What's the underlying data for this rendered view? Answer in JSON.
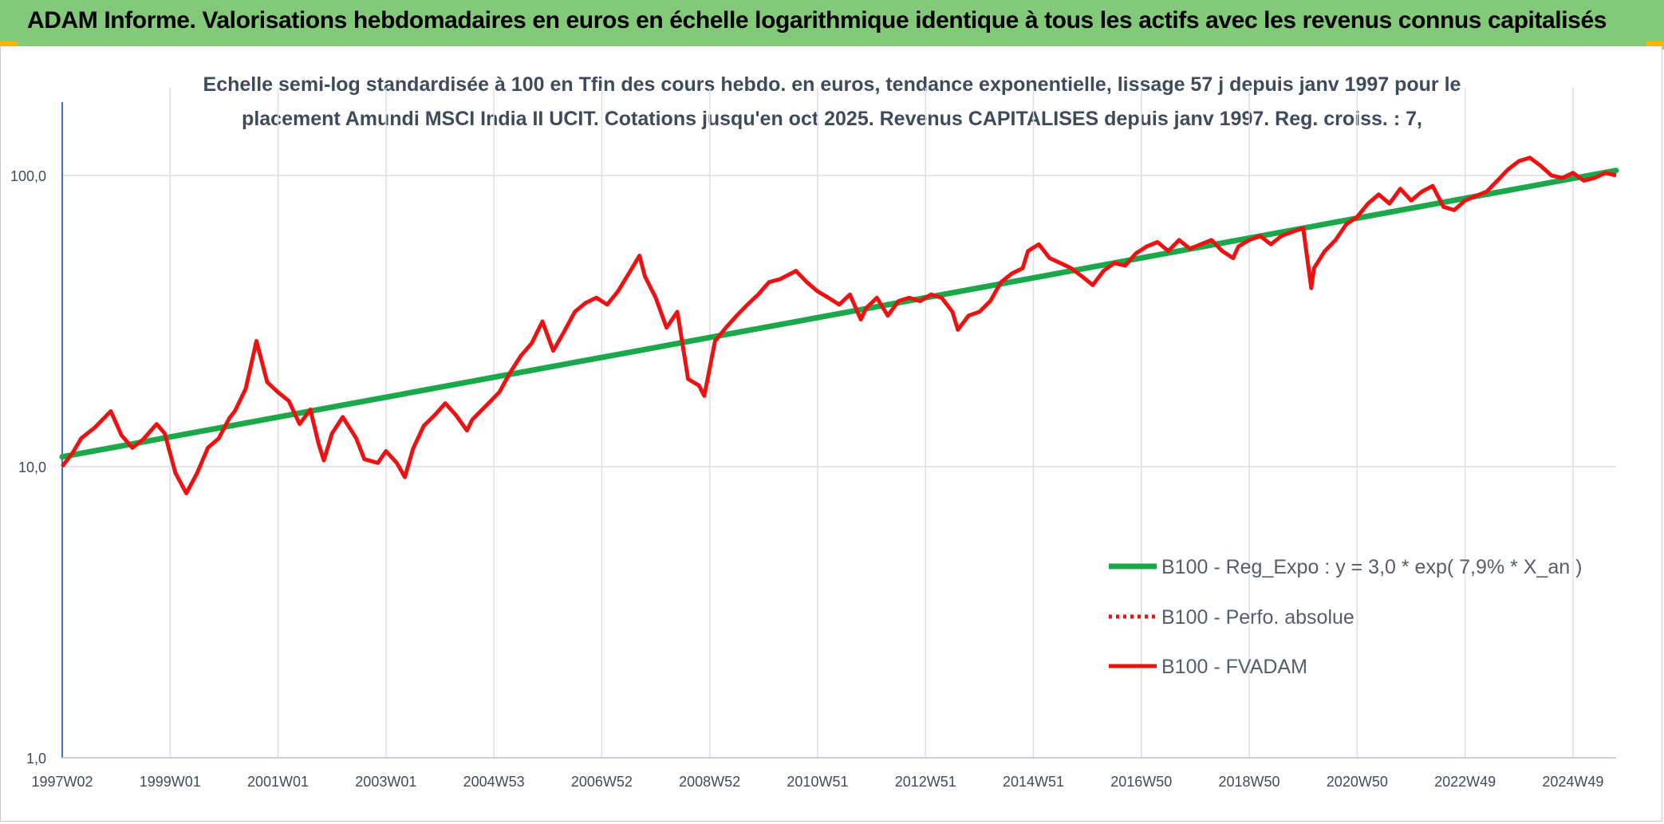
{
  "header": {
    "title": "ADAM Informe. Valorisations hebdomadaires en euros en échelle logarithmique identique à tous les actifs avec les revenus connus capitalisés"
  },
  "colors": {
    "header_bg": "#82c97a",
    "corner_accent": "#f5b700",
    "trend_line": "#1aa84b",
    "price_line": "#ee1111",
    "axis_line": "#4472c4",
    "gridline": "#dcdfe4",
    "text": "#3f4b5b"
  },
  "chart_data": {
    "type": "line",
    "title_lines": [
      "Echelle semi-log standardisée à 100 en Tfin des cours hebdo. en euros, tendance exponentielle, lissage 57 j depuis janv 1997 pour le",
      "placement Amundi MSCI India II UCIT. Cotations jusqu'en oct 2025. Revenus CAPITALISES depuis janv 1997. Reg. croiss. : 7,"
    ],
    "xlabel": "",
    "ylabel": "",
    "y_scale": "log",
    "ylim": [
      1,
      200
    ],
    "y_ticks": [
      {
        "value": 1,
        "label": "1,0"
      },
      {
        "value": 10,
        "label": "10,0"
      },
      {
        "value": 100,
        "label": "100,0"
      }
    ],
    "x_range": [
      1997.0,
      2025.8
    ],
    "x_ticks": [
      {
        "value": 1997.0,
        "label": "1997W02"
      },
      {
        "value": 1999.0,
        "label": "1999W01"
      },
      {
        "value": 2001.0,
        "label": "2001W01"
      },
      {
        "value": 2003.0,
        "label": "2003W01"
      },
      {
        "value": 2005.0,
        "label": "2004W53"
      },
      {
        "value": 2007.0,
        "label": "2006W52"
      },
      {
        "value": 2009.0,
        "label": "2008W52"
      },
      {
        "value": 2011.0,
        "label": "2010W51"
      },
      {
        "value": 2013.0,
        "label": "2012W51"
      },
      {
        "value": 2015.0,
        "label": "2014W51"
      },
      {
        "value": 2017.0,
        "label": "2016W50"
      },
      {
        "value": 2019.0,
        "label": "2018W50"
      },
      {
        "value": 2021.0,
        "label": "2020W50"
      },
      {
        "value": 2023.0,
        "label": "2022W49"
      },
      {
        "value": 2025.0,
        "label": "2024W49"
      }
    ],
    "grid": true,
    "legend_position": "bottom-right",
    "series": [
      {
        "name": "B100 - Reg_Expo : y = 3,0 * exp( 7,9% *  X_an )",
        "color": "#1aa84b",
        "style": "solid",
        "x": [
          1997.0,
          2025.8
        ],
        "y": [
          10.8,
          104
        ]
      },
      {
        "name": "B100 - Perfo. absolue",
        "color": "#ee1111",
        "style": "dotted",
        "x": [],
        "y": []
      },
      {
        "name": "B100 - FVADAM",
        "color": "#ee1111",
        "style": "solid",
        "x": [
          1997.0,
          1997.2,
          1997.35,
          1997.6,
          1997.9,
          1998.1,
          1998.3,
          1998.5,
          1998.75,
          1998.9,
          1999.1,
          1999.3,
          1999.5,
          1999.7,
          1999.9,
          2000.1,
          2000.2,
          2000.4,
          2000.6,
          2000.8,
          2001.0,
          2001.2,
          2001.4,
          2001.6,
          2001.75,
          2001.85,
          2002.0,
          2002.2,
          2002.45,
          2002.6,
          2002.85,
          2003.0,
          2003.2,
          2003.35,
          2003.5,
          2003.7,
          2003.9,
          2004.1,
          2004.3,
          2004.5,
          2004.6,
          2004.8,
          2004.9,
          2005.1,
          2005.3,
          2005.5,
          2005.7,
          2005.9,
          2006.1,
          2006.3,
          2006.5,
          2006.7,
          2006.9,
          2007.1,
          2007.3,
          2007.5,
          2007.7,
          2007.8,
          2008.0,
          2008.2,
          2008.4,
          2008.6,
          2008.8,
          2008.9,
          2009.1,
          2009.3,
          2009.5,
          2009.7,
          2009.9,
          2010.1,
          2010.3,
          2010.6,
          2010.8,
          2011.0,
          2011.2,
          2011.4,
          2011.6,
          2011.8,
          2011.9,
          2012.1,
          2012.3,
          2012.5,
          2012.7,
          2012.9,
          2013.1,
          2013.3,
          2013.5,
          2013.6,
          2013.8,
          2014.0,
          2014.2,
          2014.4,
          2014.6,
          2014.8,
          2014.9,
          2015.1,
          2015.3,
          2015.5,
          2015.7,
          2015.9,
          2016.1,
          2016.3,
          2016.5,
          2016.7,
          2016.9,
          2017.1,
          2017.3,
          2017.5,
          2017.7,
          2017.9,
          2018.1,
          2018.3,
          2018.5,
          2018.7,
          2018.8,
          2019.0,
          2019.2,
          2019.4,
          2019.6,
          2019.8,
          2020.0,
          2020.15,
          2020.2,
          2020.4,
          2020.6,
          2020.8,
          2021.0,
          2021.2,
          2021.4,
          2021.6,
          2021.8,
          2022.0,
          2022.2,
          2022.4,
          2022.6,
          2022.8,
          2023.0,
          2023.2,
          2023.4,
          2023.6,
          2023.8,
          2024.0,
          2024.2,
          2024.4,
          2024.6,
          2024.8,
          2025.0,
          2025.2,
          2025.4,
          2025.6,
          2025.8
        ],
        "y": [
          10.0,
          11.2,
          12.5,
          13.6,
          15.5,
          12.8,
          11.6,
          12.4,
          14.0,
          13.0,
          9.5,
          8.1,
          9.5,
          11.6,
          12.5,
          14.7,
          15.5,
          18.5,
          27.0,
          19.5,
          18.0,
          16.8,
          14.0,
          15.7,
          12.0,
          10.5,
          13.0,
          14.8,
          12.5,
          10.6,
          10.3,
          11.3,
          10.3,
          9.2,
          11.5,
          13.8,
          15.0,
          16.5,
          15.0,
          13.3,
          14.5,
          15.8,
          16.5,
          18.0,
          21.0,
          24.0,
          26.5,
          31.5,
          25.0,
          29.0,
          34.0,
          36.5,
          38.0,
          36.0,
          40.0,
          46.0,
          53.0,
          45.0,
          38.0,
          30.0,
          34.0,
          20.0,
          19.0,
          17.5,
          27.0,
          30.0,
          33.0,
          36.0,
          39.0,
          43.0,
          44.0,
          47.0,
          43.0,
          40.0,
          38.0,
          36.0,
          39.0,
          32.0,
          35.0,
          38.0,
          33.0,
          37.0,
          38.0,
          37.0,
          39.0,
          38.0,
          34.0,
          29.5,
          33.0,
          34.0,
          37.0,
          43.0,
          46.0,
          48.0,
          55.0,
          58.0,
          52.0,
          50.0,
          48.0,
          45.0,
          42.0,
          47.0,
          50.0,
          49.0,
          54.0,
          57.0,
          59.0,
          55.0,
          60.0,
          56.0,
          58.0,
          60.0,
          55.0,
          52.0,
          57.0,
          60.0,
          62.0,
          58.0,
          62.0,
          64.0,
          66.0,
          41.0,
          48.0,
          55.0,
          60.0,
          68.0,
          72.0,
          80.0,
          86.0,
          80.0,
          90.0,
          82.0,
          88.0,
          92.0,
          78.0,
          76.0,
          82.0,
          85.0,
          88.0,
          96.0,
          105.0,
          112.0,
          115.0,
          108.0,
          100.0,
          98.0,
          102.0,
          96.0,
          98.0,
          102.0,
          100.0
        ]
      }
    ]
  }
}
